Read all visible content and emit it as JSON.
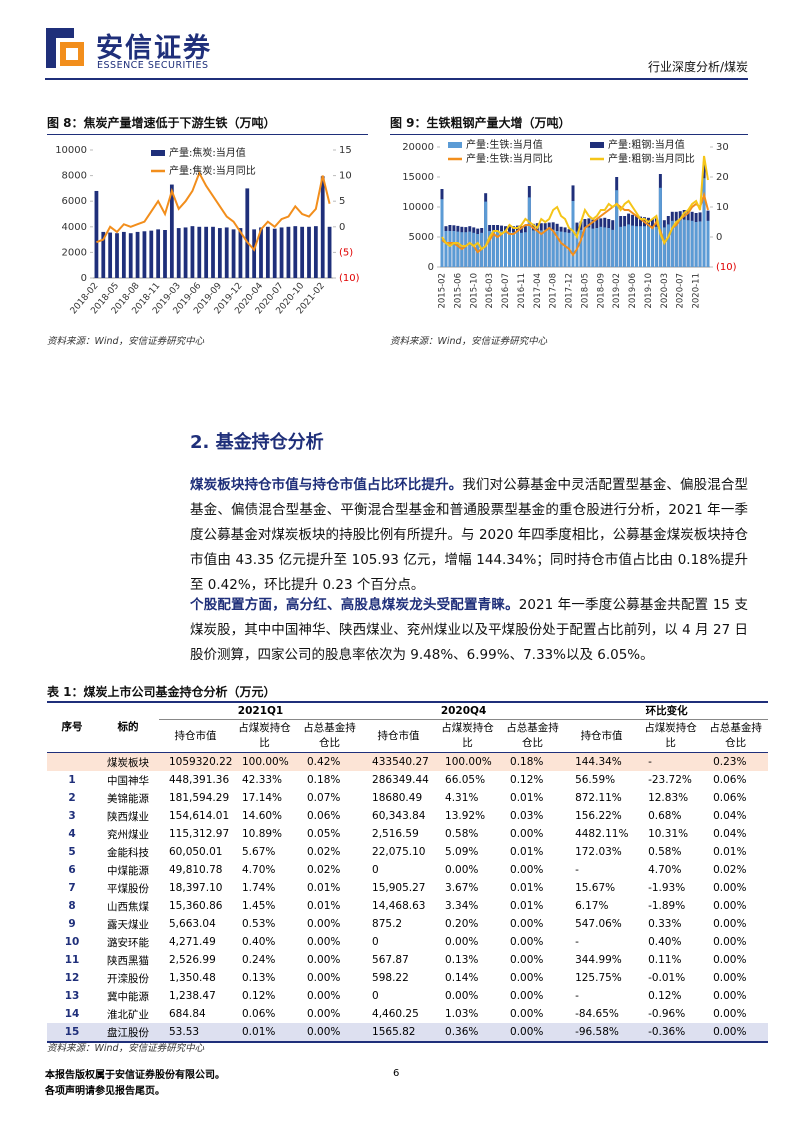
{
  "header": {
    "company": "安信证券",
    "company_en": "ESSENCE SECURITIES",
    "report_type": "行业深度分析/煤炭"
  },
  "figures": [
    {
      "source": "资料来源：Wind，安信证券研究中心",
      "chart_data": {
        "type": "bar_line",
        "title": "图 8：焦炭产量增速低于下游生铁（万吨）",
        "categories": [
          "2018-02",
          null,
          null,
          "2018-05",
          null,
          null,
          "2018-08",
          null,
          null,
          "2018-11",
          null,
          null,
          "2019-03",
          null,
          null,
          "2019-06",
          null,
          null,
          "2019-09",
          null,
          null,
          "2019-12",
          null,
          null,
          "2020-04",
          null,
          null,
          "2020-07",
          null,
          null,
          "2020-10",
          null,
          null,
          "2021-02",
          null
        ],
        "series": [
          {
            "name": "产量:焦炭:当月值",
            "type": "bar",
            "color": "#1f2f7a",
            "values": [
              6800,
              3600,
              3550,
              3500,
              3600,
              3500,
              3600,
              3650,
              3700,
              3800,
              3750,
              7300,
              3900,
              3950,
              4050,
              4000,
              4000,
              4000,
              3900,
              3950,
              3800,
              3900,
              7000,
              3800,
              3950,
              4000,
              3850,
              3950,
              4000,
              4050,
              4000,
              4000,
              4050,
              7950,
              4000
            ]
          },
          {
            "name": "产量:焦炭:当月同比",
            "type": "line",
            "axis": "y2",
            "color": "#f28e1c",
            "values": [
              -3,
              -2.5,
              0,
              -1,
              0.5,
              0,
              0.5,
              1,
              3,
              5,
              2.5,
              7,
              3.5,
              5,
              7,
              10.5,
              8,
              6,
              4,
              2,
              1,
              -1,
              -3,
              -4.5,
              -0.5,
              1,
              0,
              1.5,
              2,
              4,
              2.5,
              2,
              3.5,
              10,
              4.5
            ]
          }
        ],
        "ylim": [
          0,
          10000
        ],
        "yticks": [
          0,
          2000,
          4000,
          6000,
          8000,
          10000
        ],
        "y2lim": [
          -10,
          15
        ],
        "y2ticks": [
          {
            "value": -10,
            "label": "(10)"
          },
          {
            "value": -5,
            "label": "(5)"
          },
          0,
          5,
          10,
          15
        ]
      }
    },
    {
      "source": "资料来源：Wind，安信证券研究中心",
      "chart_data": {
        "type": "bar_line",
        "title": "图 9：生铁粗钢产量大增（万吨）",
        "categories": [
          "2015-02",
          null,
          null,
          null,
          "2015-06",
          null,
          null,
          null,
          "2015-10",
          null,
          null,
          null,
          "2016-03",
          null,
          null,
          null,
          "2016-07",
          null,
          null,
          null,
          "2016-11",
          null,
          null,
          null,
          "2017-04",
          null,
          null,
          null,
          "2017-08",
          null,
          null,
          null,
          "2017-12",
          null,
          null,
          null,
          "2018-05",
          null,
          null,
          null,
          "2018-09",
          null,
          null,
          null,
          "2019-02",
          null,
          null,
          null,
          "2019-06",
          null,
          null,
          null,
          "2019-10",
          null,
          null,
          null,
          "2020-03",
          null,
          null,
          null,
          "2020-07",
          null,
          null,
          null,
          "2020-11",
          null,
          null,
          null
        ],
        "series": [
          {
            "name": "产量:生铁:当月值",
            "type": "bar",
            "color": "#5b9bd5",
            "values": [
              11300,
              6000,
              6000,
              6000,
              5900,
              5800,
              5800,
              5900,
              5700,
              5500,
              5700,
              10900,
              6000,
              6100,
              6000,
              6000,
              5800,
              5900,
              5800,
              5900,
              5700,
              5800,
              11600,
              6100,
              6100,
              6100,
              6200,
              6300,
              6200,
              6000,
              5900,
              5800,
              5700,
              11000,
              5900,
              6200,
              6600,
              6600,
              6400,
              6500,
              6700,
              6600,
              6500,
              6200,
              12800,
              6700,
              6800,
              7100,
              6900,
              6800,
              6800,
              6800,
              6800,
              6500,
              6700,
              13200,
              6600,
              7100,
              7700,
              7700,
              7800,
              7900,
              7800,
              7700,
              7500,
              7600,
              14800,
              7700
            ]
          },
          {
            "name": "产量:粗钢:当月值",
            "type": "bar",
            "color": "#1f2f7a",
            "values": [
              13000,
              6800,
              7000,
              6950,
              6850,
              6700,
              6650,
              6800,
              6600,
              6400,
              6500,
              12300,
              7000,
              7000,
              7000,
              6900,
              6800,
              7000,
              6800,
              6900,
              6800,
              6800,
              13500,
              7200,
              7300,
              7300,
              7300,
              7400,
              7450,
              7200,
              6700,
              6600,
              6300,
              13600,
              7400,
              7600,
              8000,
              8100,
              7900,
              8000,
              8100,
              8200,
              8000,
              7800,
              15000,
              8500,
              8500,
              8900,
              8700,
              8500,
              8400,
              8300,
              8200,
              8000,
              8100,
              15500,
              7800,
              8500,
              9200,
              9200,
              9300,
              9500,
              9500,
              9200,
              9000,
              9100,
              17400,
              9400
            ]
          },
          {
            "name": "产量:生铁:当月同比",
            "type": "line",
            "axis": "y2",
            "color": "#f28e1c",
            "values": [
              -1,
              -2,
              -2,
              -2,
              -3,
              -4,
              -3,
              -2,
              -3,
              -5,
              -4,
              -3,
              -1,
              1,
              0,
              1,
              2,
              1,
              1,
              2,
              3,
              4,
              4,
              3,
              2,
              1,
              2,
              3,
              2,
              0,
              -2,
              -3,
              -4,
              -6,
              -4,
              -1,
              3,
              4,
              5,
              6,
              7,
              8,
              9,
              10,
              11,
              10,
              9,
              9,
              8,
              7,
              6,
              5,
              4,
              3,
              5,
              2,
              -2,
              0,
              3,
              4,
              6,
              7,
              8,
              10,
              11,
              10,
              14,
              9
            ]
          },
          {
            "name": "产量:粗钢:当月同比",
            "type": "line",
            "axis": "y2",
            "color": "#f5c518",
            "values": [
              0,
              -2,
              -3,
              -2,
              -2,
              -3,
              -3,
              -2,
              -3,
              -2,
              -4,
              -3,
              0,
              2,
              2,
              1,
              2,
              4,
              3,
              3,
              4,
              6,
              5,
              4,
              3,
              6,
              5,
              6,
              9,
              10,
              7,
              6,
              3,
              2,
              0,
              5,
              9,
              7,
              6,
              7,
              9,
              9,
              11,
              10,
              11,
              9,
              11,
              12,
              10,
              8,
              6,
              6,
              5,
              6,
              7,
              1,
              -2,
              0,
              3,
              5,
              6,
              8,
              9,
              11,
              12,
              9,
              27,
              19
            ]
          }
        ],
        "ylim": [
          0,
          20000
        ],
        "yticks": [
          0,
          5000,
          10000,
          15000,
          20000
        ],
        "y2lim": [
          -10,
          30
        ],
        "y2ticks": [
          {
            "value": -10,
            "label": "(10)"
          },
          0,
          10,
          20,
          30
        ]
      }
    }
  ],
  "section": {
    "heading": "2. 基金持仓分析",
    "paragraphs": [
      {
        "lead": "煤炭板块持仓市值与持仓市值占比环比提升。",
        "body": "我们对公募基金中灵活配置型基金、偏股混合型基金、偏债混合型基金、平衡混合型基金和普通股票型基金的重仓股进行分析，2021 年一季度公募基金对煤炭板块的持股比例有所提升。与 2020 年四季度相比，公募基金煤炭板块持仓市值由 43.35 亿元提升至 105.93 亿元，增幅 144.34%；同时持仓市值占比由 0.18%提升至 0.42%，环比提升 0.23 个百分点。"
      },
      {
        "lead": "个股配置方面，高分红、高股息煤炭龙头受配置青睐。",
        "body": "2021 年一季度公募基金共配置 15 支煤炭股，其中中国神华、陕西煤业、兖州煤业以及平煤股份处于配置占比前列，以 4 月 27 日股价测算，四家公司的股息率依次为 9.48%、6.99%、7.33%以及 6.05%。"
      }
    ]
  },
  "table": {
    "title": "表 1：煤炭上市公司基金持仓分析（万元）",
    "header_groups": [
      "序号",
      "标的",
      "2021Q1",
      "2020Q4",
      "环比变化"
    ],
    "header_cols": [
      "持仓市值",
      "占煤炭持仓比",
      "占总基金持仓比",
      "持仓市值",
      "占煤炭持仓比",
      "占总基金持仓比",
      "持仓市值",
      "占煤炭持仓比",
      "占总基金持仓比"
    ],
    "sector_row": [
      "煤炭板块",
      "1059320.22",
      "100.00%",
      "0.42%",
      "433540.27",
      "100.00%",
      "0.18%",
      "144.34%",
      "-",
      "0.23%"
    ],
    "rows": [
      [
        "1",
        "中国神华",
        "448,391.36",
        "42.33%",
        "0.18%",
        "286349.44",
        "66.05%",
        "0.12%",
        "56.59%",
        "-23.72%",
        "0.06%"
      ],
      [
        "2",
        "美锦能源",
        "181,594.29",
        "17.14%",
        "0.07%",
        "18680.49",
        "4.31%",
        "0.01%",
        "872.11%",
        "12.83%",
        "0.06%"
      ],
      [
        "3",
        "陕西煤业",
        "154,614.01",
        "14.60%",
        "0.06%",
        "60,343.84",
        "13.92%",
        "0.03%",
        "156.22%",
        "0.68%",
        "0.04%"
      ],
      [
        "4",
        "兖州煤业",
        "115,312.97",
        "10.89%",
        "0.05%",
        "2,516.59",
        "0.58%",
        "0.00%",
        "4482.11%",
        "10.31%",
        "0.04%"
      ],
      [
        "5",
        "金能科技",
        "60,050.01",
        "5.67%",
        "0.02%",
        "22,075.10",
        "5.09%",
        "0.01%",
        "172.03%",
        "0.58%",
        "0.01%"
      ],
      [
        "6",
        "中煤能源",
        "49,810.78",
        "4.70%",
        "0.02%",
        "0",
        "0.00%",
        "0.00%",
        "-",
        "4.70%",
        "0.02%"
      ],
      [
        "7",
        "平煤股份",
        "18,397.10",
        "1.74%",
        "0.01%",
        "15,905.27",
        "3.67%",
        "0.01%",
        "15.67%",
        "-1.93%",
        "0.00%"
      ],
      [
        "8",
        "山西焦煤",
        "15,360.86",
        "1.45%",
        "0.01%",
        "14,468.63",
        "3.34%",
        "0.01%",
        "6.17%",
        "-1.89%",
        "0.00%"
      ],
      [
        "9",
        "露天煤业",
        "5,663.04",
        "0.53%",
        "0.00%",
        "875.2",
        "0.20%",
        "0.00%",
        "547.06%",
        "0.33%",
        "0.00%"
      ],
      [
        "10",
        "潞安环能",
        "4,271.49",
        "0.40%",
        "0.00%",
        "0",
        "0.00%",
        "0.00%",
        "-",
        "0.40%",
        "0.00%"
      ],
      [
        "11",
        "陕西黑猫",
        "2,526.99",
        "0.24%",
        "0.00%",
        "567.87",
        "0.13%",
        "0.00%",
        "344.99%",
        "0.11%",
        "0.00%"
      ],
      [
        "12",
        "开滦股份",
        "1,350.48",
        "0.13%",
        "0.00%",
        "598.22",
        "0.14%",
        "0.00%",
        "125.75%",
        "-0.01%",
        "0.00%"
      ],
      [
        "13",
        "冀中能源",
        "1,238.47",
        "0.12%",
        "0.00%",
        "0",
        "0.00%",
        "0.00%",
        "-",
        "0.12%",
        "0.00%"
      ],
      [
        "14",
        "淮北矿业",
        "684.84",
        "0.06%",
        "0.00%",
        "4,460.25",
        "1.03%",
        "0.00%",
        "-84.65%",
        "-0.96%",
        "0.00%"
      ],
      [
        "15",
        "盘江股份",
        "53.53",
        "0.01%",
        "0.00%",
        "1565.82",
        "0.36%",
        "0.00%",
        "-96.58%",
        "-0.36%",
        "0.00%"
      ]
    ],
    "source": "资料来源：Wind，安信证券研究中心"
  },
  "footer": {
    "notes": [
      "本报告版权属于安信证券股份有限公司。",
      "各项声明请参见报告尾页。"
    ],
    "page": "6"
  }
}
